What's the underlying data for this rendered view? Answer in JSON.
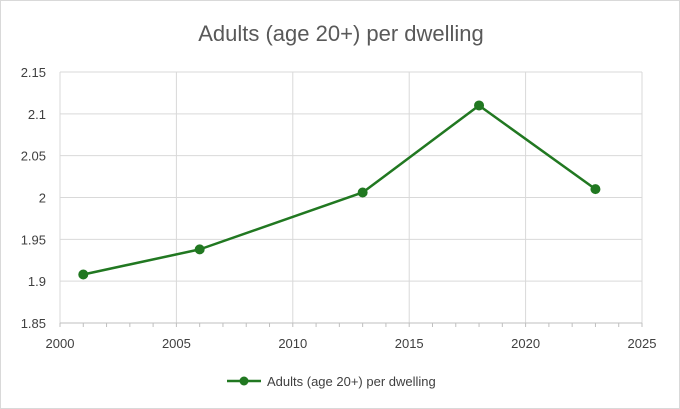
{
  "chart_data": {
    "type": "scatter",
    "title": "Adults (age 20+) per dwelling",
    "xlabel": "",
    "ylabel": "",
    "xlim": [
      2000,
      2025
    ],
    "ylim": [
      1.85,
      2.15
    ],
    "x_ticks": [
      "2000",
      "2005",
      "2010",
      "2015",
      "2020",
      "2025"
    ],
    "y_ticks": [
      "1.85",
      "1.9",
      "1.95",
      "2",
      "2.05",
      "2.1",
      "2.15"
    ],
    "grid": true,
    "legend_position": "bottom",
    "series": [
      {
        "name": "Adults (age 20+) per dwelling",
        "color": "#217821",
        "marker": "circle",
        "line": true,
        "points": [
          {
            "x": 2001,
            "y": 1.908
          },
          {
            "x": 2006,
            "y": 1.938
          },
          {
            "x": 2013,
            "y": 2.006
          },
          {
            "x": 2018,
            "y": 2.11
          },
          {
            "x": 2023,
            "y": 2.01
          }
        ]
      }
    ]
  }
}
